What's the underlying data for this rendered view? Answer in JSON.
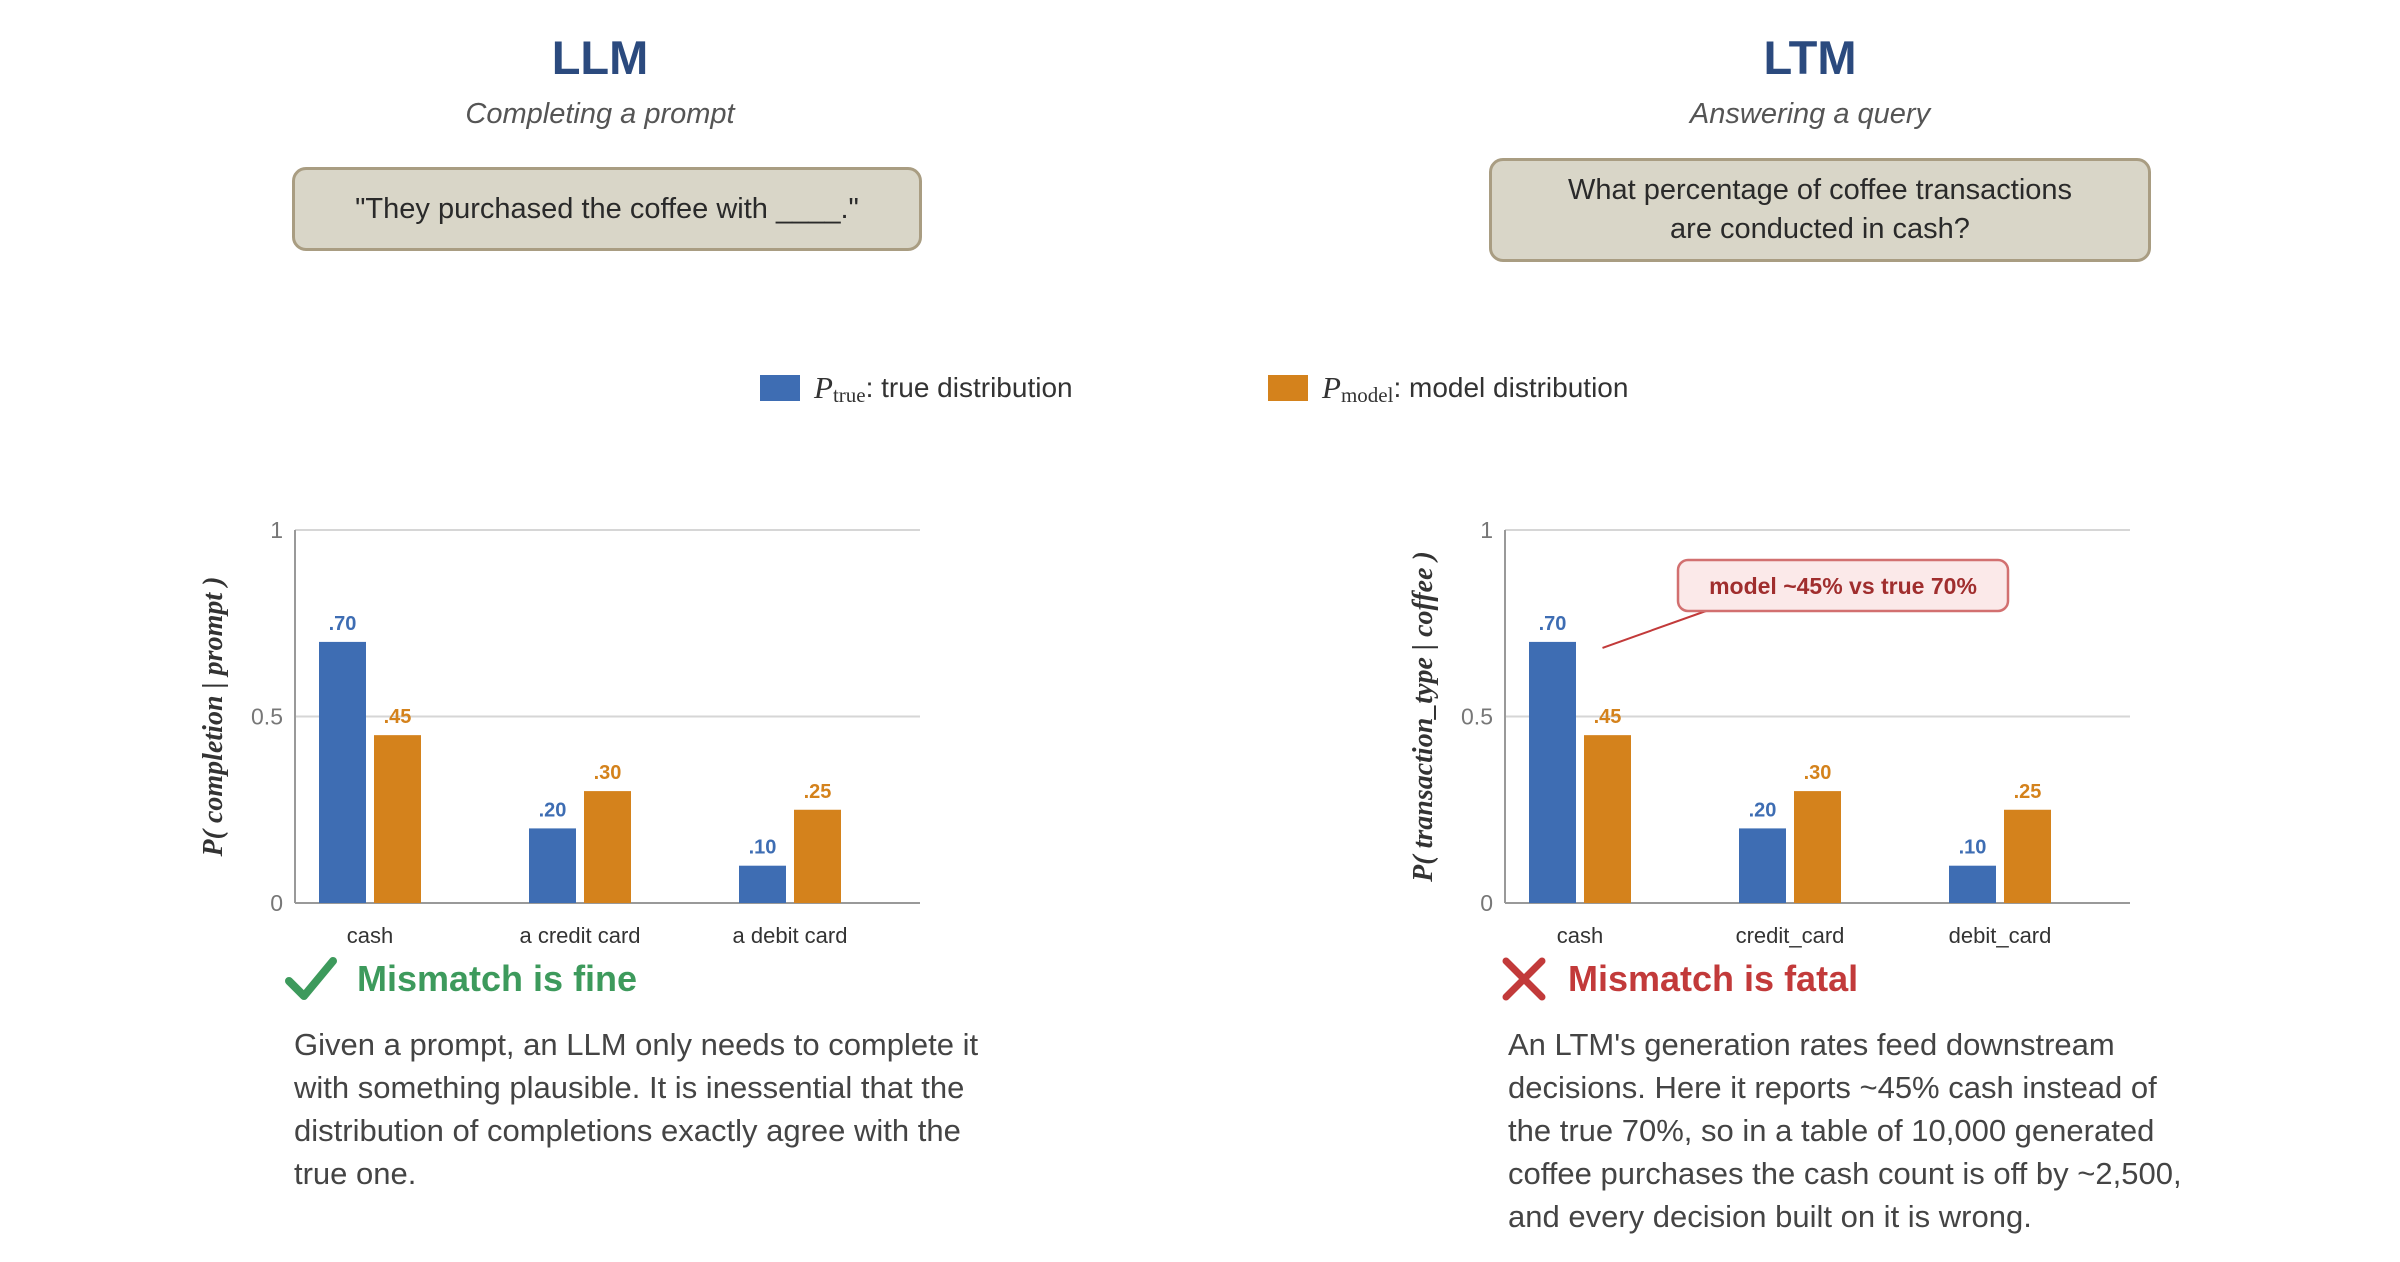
{
  "colors": {
    "true_series": "#3e6db3",
    "model_series": "#d4821c",
    "title": "#2b4a7e",
    "ok": "#3d9a5c",
    "bad": "#c23a3a",
    "prompt_bg": "#d9d6c8",
    "prompt_border": "#a99d82"
  },
  "legend": {
    "true_symbol": "P",
    "true_subscript": "true",
    "true_label": ": true distribution",
    "model_symbol": "P",
    "model_subscript": "model",
    "model_label": ": model distribution"
  },
  "left": {
    "title": "LLM",
    "subtitle": "Completing a prompt",
    "prompt": "\"They purchased the coffee with ____.\"",
    "status_icon": "check-icon",
    "status": "Mismatch is fine",
    "description": "Given a prompt, an LLM only needs to complete it with something plausible. It is inessential that the distribution of completions exactly agree with the true one."
  },
  "right": {
    "title": "LTM",
    "subtitle": "Answering a query",
    "prompt": "What percentage of coffee transactions\nare conducted in cash?",
    "status_icon": "cross-icon",
    "status": "Mismatch is fatal",
    "description": "An LTM's generation rates feed downstream decisions. Here it reports ~45% cash instead of the true 70%, so in a table of 10,000 generated coffee purchases the cash count is off by ~2,500, and every decision built on it is wrong."
  },
  "chart_data": [
    {
      "type": "bar",
      "ylabel": "P( completion | prompt )",
      "categories": [
        "cash",
        "a credit card",
        "a debit card"
      ],
      "series": [
        {
          "name": "P_true",
          "values": [
            0.7,
            0.2,
            0.1
          ],
          "labels": [
            ".70",
            ".20",
            ".10"
          ]
        },
        {
          "name": "P_model",
          "values": [
            0.45,
            0.3,
            0.25
          ],
          "labels": [
            ".45",
            ".30",
            ".25"
          ]
        }
      ],
      "ylim": [
        0,
        1
      ],
      "yticks": [
        0,
        0.5,
        1
      ],
      "ytick_labels": [
        "0",
        "0.5",
        "1"
      ],
      "grid": true
    },
    {
      "type": "bar",
      "ylabel": "P( transaction_type | coffee )",
      "categories": [
        "cash",
        "credit_card",
        "debit_card"
      ],
      "series": [
        {
          "name": "P_true",
          "values": [
            0.7,
            0.2,
            0.1
          ],
          "labels": [
            ".70",
            ".20",
            ".10"
          ]
        },
        {
          "name": "P_model",
          "values": [
            0.45,
            0.3,
            0.25
          ],
          "labels": [
            ".45",
            ".30",
            ".25"
          ]
        }
      ],
      "ylim": [
        0,
        1
      ],
      "yticks": [
        0,
        0.5,
        1
      ],
      "ytick_labels": [
        "0",
        "0.5",
        "1"
      ],
      "grid": true,
      "annotation": "model ~45% vs true 70%"
    }
  ]
}
